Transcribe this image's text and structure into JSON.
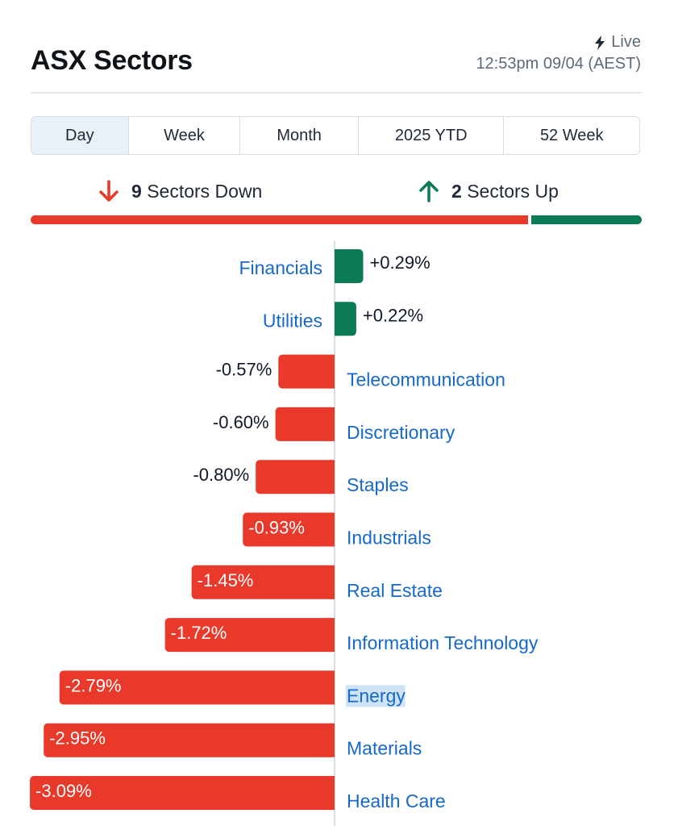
{
  "header": {
    "title": "ASX Sectors",
    "live_label": "Live",
    "timestamp": "12:53pm 09/04 (AEST)"
  },
  "tabs": [
    {
      "label": "Day",
      "active": true
    },
    {
      "label": "Week",
      "active": false
    },
    {
      "label": "Month",
      "active": false
    },
    {
      "label": "2025 YTD",
      "active": false
    },
    {
      "label": "52 Week",
      "active": false
    }
  ],
  "summary": {
    "down_count": "9",
    "down_label": "Sectors Down",
    "up_count": "2",
    "up_label": "Sectors Up",
    "down_ratio": 0.818
  },
  "colors": {
    "negative": "#e8392b",
    "positive": "#0b7a57",
    "link": "#1669c9"
  },
  "icons": {
    "live": "lightning-bolt-icon",
    "down": "arrow-down-icon",
    "up": "arrow-up-icon"
  },
  "chart_data": {
    "type": "bar",
    "orientation": "horizontal-diverging",
    "categories": [
      "Financials",
      "Utilities",
      "Telecommunication",
      "Discretionary",
      "Staples",
      "Industrials",
      "Real Estate",
      "Information Technology",
      "Energy",
      "Materials",
      "Health Care"
    ],
    "values": [
      0.29,
      0.22,
      -0.57,
      -0.6,
      -0.8,
      -0.93,
      -1.45,
      -1.72,
      -2.79,
      -2.95,
      -3.09
    ],
    "value_labels": [
      "+0.29%",
      "+0.22%",
      "-0.57%",
      "-0.60%",
      "-0.80%",
      "-0.93%",
      "-1.45%",
      "-1.72%",
      "-2.79%",
      "-2.95%",
      "-3.09%"
    ],
    "highlighted": "Energy",
    "unit": "%"
  }
}
